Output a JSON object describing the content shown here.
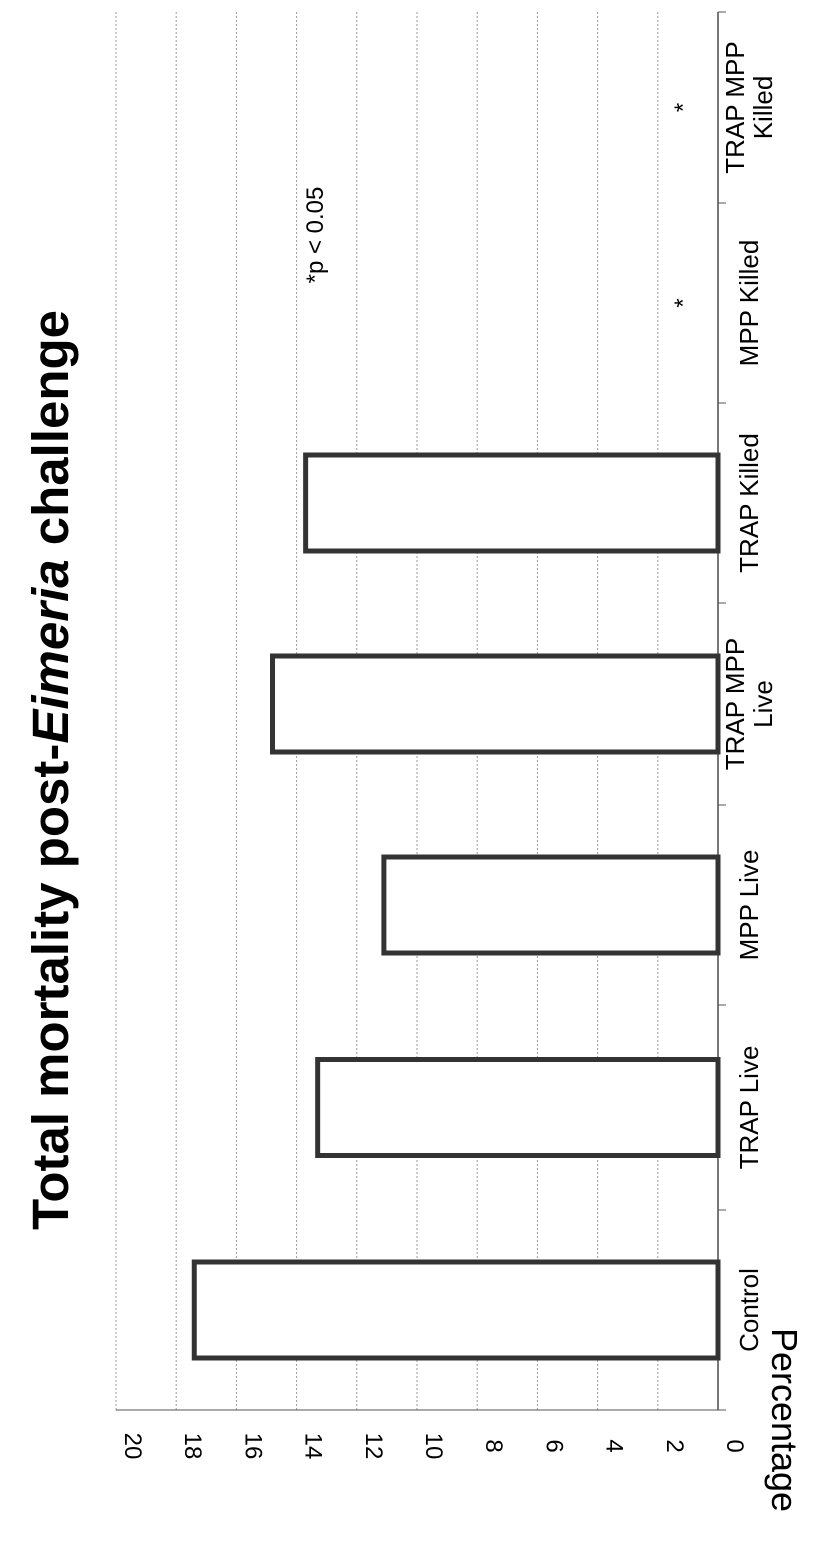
{
  "chart_data": {
    "type": "bar",
    "orientation": "rotated-90",
    "title": {
      "prefix": "Total mortality post-",
      "italic": "Eimeria",
      "suffix": " challenge"
    },
    "ylabel": "Percentage",
    "xlabel": "",
    "categories": [
      [
        "Control"
      ],
      [
        "TRAP Live"
      ],
      [
        "MPP Live"
      ],
      [
        "TRAP MPP",
        "Live"
      ],
      [
        "TRAP Killed"
      ],
      [
        "MPP Killed"
      ],
      [
        "TRAP MPP",
        "Killed"
      ]
    ],
    "values": [
      17.4,
      13.3,
      11.1,
      14.8,
      13.7,
      0,
      0
    ],
    "significance_markers": [
      "",
      "",
      "",
      "",
      "",
      "*",
      "*"
    ],
    "annotation": "*p < 0.05",
    "ylim": [
      0,
      20
    ],
    "y_ticks": [
      0,
      2,
      4,
      6,
      8,
      10,
      12,
      14,
      16,
      18,
      20
    ],
    "grid": true,
    "legend": "none",
    "colors": {
      "bar_fill": "#ffffff",
      "bar_stroke": "#333333",
      "grid": "#9a9a9a",
      "axis": "#555555",
      "text": "#000000"
    }
  }
}
